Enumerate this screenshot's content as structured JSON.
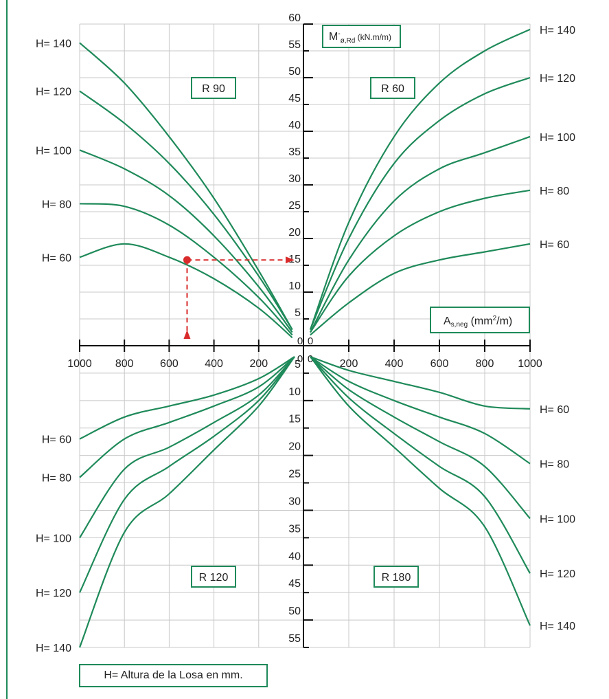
{
  "chart_data": {
    "type": "line",
    "ylabel_top_main": "M",
    "ylabel_top_sup": "-",
    "ylabel_top_sub": "ø,Rd",
    "ylabel_top_unit": "(kN.m/m)",
    "xlabel_main": "A",
    "xlabel_sub": "s,neg",
    "xlabel_unit_pre": "(mm",
    "xlabel_unit_sup": "2",
    "xlabel_unit_post": "/m)",
    "x_ticks_left": [
      "1000",
      "800",
      "600",
      "400",
      "200",
      "0"
    ],
    "x_ticks_right": [
      "0",
      "200",
      "400",
      "600",
      "800",
      "1000"
    ],
    "y_ticks_upper": [
      "60",
      "55",
      "50",
      "45",
      "40",
      "35",
      "30",
      "25",
      "20",
      "15",
      "10",
      "5",
      "0"
    ],
    "y_ticks_lower": [
      "0",
      "5",
      "10",
      "15",
      "20",
      "25",
      "30",
      "35",
      "40",
      "45",
      "50",
      "55"
    ],
    "xlim": [
      0,
      1000
    ],
    "ylim_upper": [
      0,
      60
    ],
    "ylim_lower": [
      0,
      55
    ],
    "grid": true,
    "line_color": "#1f8a5a",
    "example_color": "#d92b2b",
    "example_point": {
      "quadrant": "R 90",
      "x": 520,
      "y": 16
    },
    "quadrants": [
      {
        "name": "R 90",
        "position": "top-left",
        "series": [
          {
            "name": "H= 140",
            "x": [
              50,
              200,
              400,
              600,
              800,
              1000
            ],
            "y": [
              3,
              14,
              27.5,
              39,
              49,
              56.5
            ]
          },
          {
            "name": "H= 120",
            "x": [
              50,
              200,
              400,
              600,
              800,
              1000
            ],
            "y": [
              3,
              13,
              24.5,
              34,
              41.5,
              47.5
            ]
          },
          {
            "name": "H= 100",
            "x": [
              50,
              200,
              400,
              600,
              800,
              1000
            ],
            "y": [
              2.5,
              11,
              20.5,
              28,
              33,
              36.5
            ]
          },
          {
            "name": "H= 80",
            "x": [
              50,
              200,
              400,
              600,
              800,
              1000
            ],
            "y": [
              2,
              9,
              16.5,
              22.5,
              26,
              26.5
            ]
          },
          {
            "name": "H= 60",
            "x": [
              50,
              200,
              400,
              600,
              800,
              1000
            ],
            "y": [
              1.5,
              7,
              12.5,
              16.5,
              19,
              16.5
            ]
          }
        ]
      },
      {
        "name": "R 60",
        "position": "top-right",
        "series": [
          {
            "name": "H= 140",
            "x": [
              30,
              200,
              400,
              600,
              800,
              1000
            ],
            "y": [
              3,
              23,
              39,
              49,
              55,
              59
            ]
          },
          {
            "name": "H= 120",
            "x": [
              30,
              200,
              400,
              600,
              800,
              1000
            ],
            "y": [
              3,
              20,
              34,
              42,
              47,
              50
            ]
          },
          {
            "name": "H= 100",
            "x": [
              30,
              200,
              400,
              600,
              800,
              1000
            ],
            "y": [
              2.5,
              16,
              27,
              33,
              36,
              39
            ]
          },
          {
            "name": "H= 80",
            "x": [
              30,
              200,
              400,
              600,
              800,
              1000
            ],
            "y": [
              2.5,
              13,
              20.5,
              25,
              27.5,
              29
            ]
          },
          {
            "name": "H= 60",
            "x": [
              30,
              200,
              400,
              600,
              800,
              1000
            ],
            "y": [
              2,
              8,
              13.5,
              16,
              17.5,
              19
            ]
          }
        ]
      },
      {
        "name": "R 120",
        "position": "bottom-left",
        "series": [
          {
            "name": "H= 60",
            "x": [
              40,
              200,
              400,
              600,
              800,
              1000
            ],
            "y": [
              2,
              6,
              9,
              11,
              13,
              17
            ]
          },
          {
            "name": "H= 80",
            "x": [
              40,
              200,
              400,
              600,
              800,
              1000
            ],
            "y": [
              2,
              7.5,
              11,
              14,
              17,
              24
            ]
          },
          {
            "name": "H= 100",
            "x": [
              40,
              200,
              400,
              600,
              800,
              1000
            ],
            "y": [
              2,
              9,
              14,
              18.5,
              22.5,
              35
            ]
          },
          {
            "name": "H= 120",
            "x": [
              40,
              200,
              400,
              600,
              800,
              1000
            ],
            "y": [
              2,
              10,
              16.5,
              22,
              28,
              45
            ]
          },
          {
            "name": "H= 140",
            "x": [
              40,
              200,
              400,
              600,
              800,
              1000
            ],
            "y": [
              2,
              11,
              19,
              27,
              34,
              55
            ]
          }
        ]
      },
      {
        "name": "R 180",
        "position": "bottom-right",
        "series": [
          {
            "name": "H= 60",
            "x": [
              30,
              200,
              400,
              600,
              800,
              1000
            ],
            "y": [
              2,
              4.5,
              6.5,
              8.5,
              11,
              11.5
            ]
          },
          {
            "name": "H= 80",
            "x": [
              30,
              200,
              400,
              600,
              800,
              1000
            ],
            "y": [
              2,
              6.5,
              10,
              13,
              16,
              21.5
            ]
          },
          {
            "name": "H= 100",
            "x": [
              30,
              200,
              400,
              600,
              800,
              1000
            ],
            "y": [
              2,
              8,
              13,
              17.5,
              22,
              31.5
            ]
          },
          {
            "name": "H= 120",
            "x": [
              30,
              200,
              400,
              600,
              800,
              1000
            ],
            "y": [
              2,
              9.5,
              16,
              22,
              27.5,
              41.5
            ]
          },
          {
            "name": "H= 140",
            "x": [
              30,
              200,
              400,
              600,
              800,
              1000
            ],
            "y": [
              2,
              11,
              18.5,
              26,
              33,
              51
            ]
          }
        ]
      }
    ]
  },
  "legend": {
    "text": "H= Altura de la Losa en mm."
  }
}
